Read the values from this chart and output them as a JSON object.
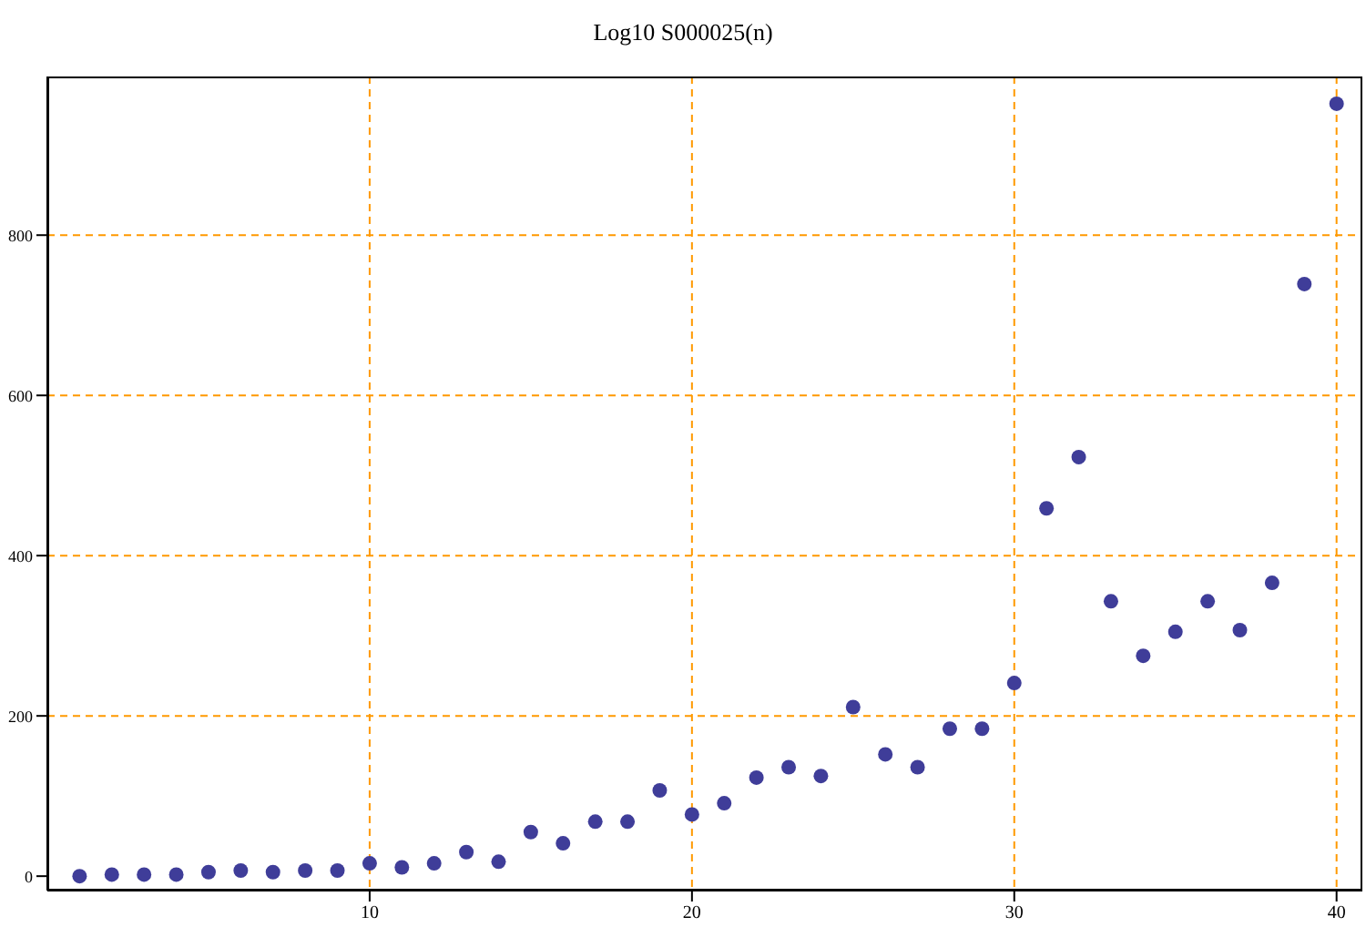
{
  "chart_data": {
    "type": "scatter",
    "title": "Log10 S000025(n)",
    "x": [
      1,
      2,
      3,
      4,
      5,
      6,
      7,
      8,
      9,
      10,
      11,
      12,
      13,
      14,
      15,
      16,
      17,
      18,
      19,
      20,
      21,
      22,
      23,
      24,
      25,
      26,
      27,
      28,
      29,
      30,
      31,
      32,
      33,
      34,
      35,
      36,
      37,
      38,
      39,
      40
    ],
    "series": [
      {
        "color": "#3f3d99",
        "values": [
          0,
          2,
          2,
          2,
          5,
          7,
          5,
          7,
          7,
          16,
          11,
          16,
          30,
          18,
          55,
          41,
          68,
          68,
          107,
          77,
          91,
          123,
          136,
          125,
          211,
          152,
          136,
          184,
          184,
          241,
          459,
          523,
          343,
          275,
          305,
          343,
          307,
          366,
          739,
          964
        ]
      }
    ],
    "xlim": [
      0,
      40.8
    ],
    "xticks": [
      10,
      20,
      30,
      40
    ],
    "ylim": [
      -18,
      998
    ],
    "yticks": [
      0,
      200,
      400,
      600,
      800
    ],
    "grid": true,
    "marker": "circle"
  }
}
